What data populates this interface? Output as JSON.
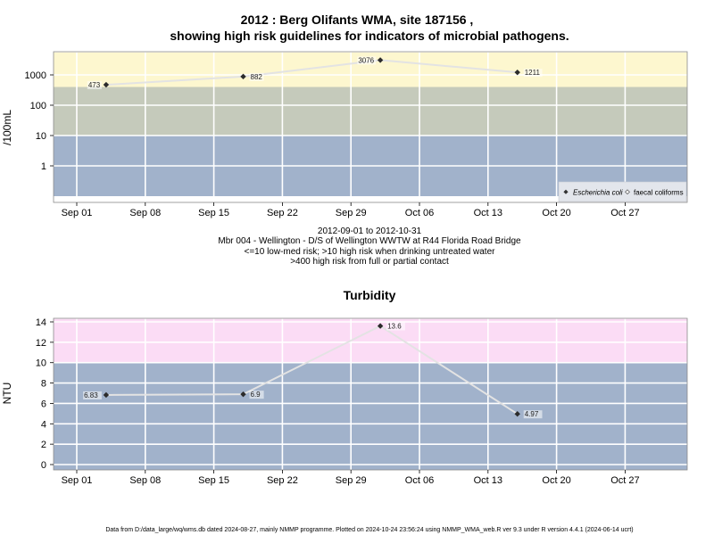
{
  "header": {
    "title_line1": "2012 : Berg Olifants WMA, site 187156 ,",
    "title_line2": "showing high risk guidelines for indicators of microbial pathogens."
  },
  "chart_data": [
    {
      "type": "scatter",
      "ylabel": "/100mL",
      "y_scale": "log",
      "x_ticks": [
        "Sep 01",
        "Sep 08",
        "Sep 15",
        "Sep 22",
        "Sep 29",
        "Oct 06",
        "Oct 13",
        "Oct 20",
        "Oct 27"
      ],
      "y_ticks": [
        "1",
        "10",
        "100",
        "1000"
      ],
      "bands": [
        {
          "from": 0.1,
          "to": 10,
          "color": "#a1b2cb"
        },
        {
          "from": 10,
          "to": 400,
          "color": "#c5cabb"
        },
        {
          "from": 400,
          "to": 5500,
          "color": "#fdf7cf"
        }
      ],
      "series": [
        {
          "name": "Escherichia coli",
          "x": [
            "2012-09-04",
            "2012-09-18",
            "2012-10-02",
            "2012-10-16"
          ],
          "values": [
            473,
            882,
            3076,
            1211
          ],
          "labels": [
            "473",
            "882",
            "3076",
            "1211"
          ]
        },
        {
          "name": "faecal coliforms",
          "x": [],
          "values": [],
          "labels": []
        }
      ],
      "legend": {
        "position": "bottom-right",
        "items": [
          "Escherichia coli",
          "faecal coliforms"
        ]
      },
      "caption": {
        "line1": "2012-09-01 to 2012-10-31",
        "line2": "Mbr 004 - Wellington - D/S of Wellington WWTW at R44 Florida Road Bridge",
        "line3": "<=10 low-med risk; >10 high risk when drinking untreated water",
        "line4": ">400 high risk from full or partial contact"
      }
    },
    {
      "type": "line",
      "title": "Turbidity",
      "ylabel": "NTU",
      "ylim": [
        -0.6,
        14.3
      ],
      "x_ticks": [
        "Sep 01",
        "Sep 08",
        "Sep 15",
        "Sep 22",
        "Sep 29",
        "Oct 06",
        "Oct 13",
        "Oct 20",
        "Oct 27"
      ],
      "y_ticks": [
        "0",
        "2",
        "4",
        "6",
        "8",
        "10",
        "12",
        "14"
      ],
      "bands": [
        {
          "from": -0.6,
          "to": 10,
          "color": "#a1b2cb"
        },
        {
          "from": 10,
          "to": 14.3,
          "color": "#fbdcf5"
        }
      ],
      "series": [
        {
          "name": "",
          "x": [
            "2012-09-04",
            "2012-09-18",
            "2012-10-02",
            "2012-10-16"
          ],
          "values": [
            6.83,
            6.9,
            13.6,
            4.97
          ],
          "labels": [
            "6.83",
            "6.9",
            "13.6",
            "4.97"
          ]
        }
      ]
    }
  ],
  "footer": {
    "text": "Data from D:/data_large/wq/wms.db dated 2024-08-27, mainly NMMP programme. Plotted on 2024-10-24 23:56:24 using NMMP_WMA_web.R ver 9.3 under R version 4.4.1 (2024-06-14 ucrt)"
  }
}
